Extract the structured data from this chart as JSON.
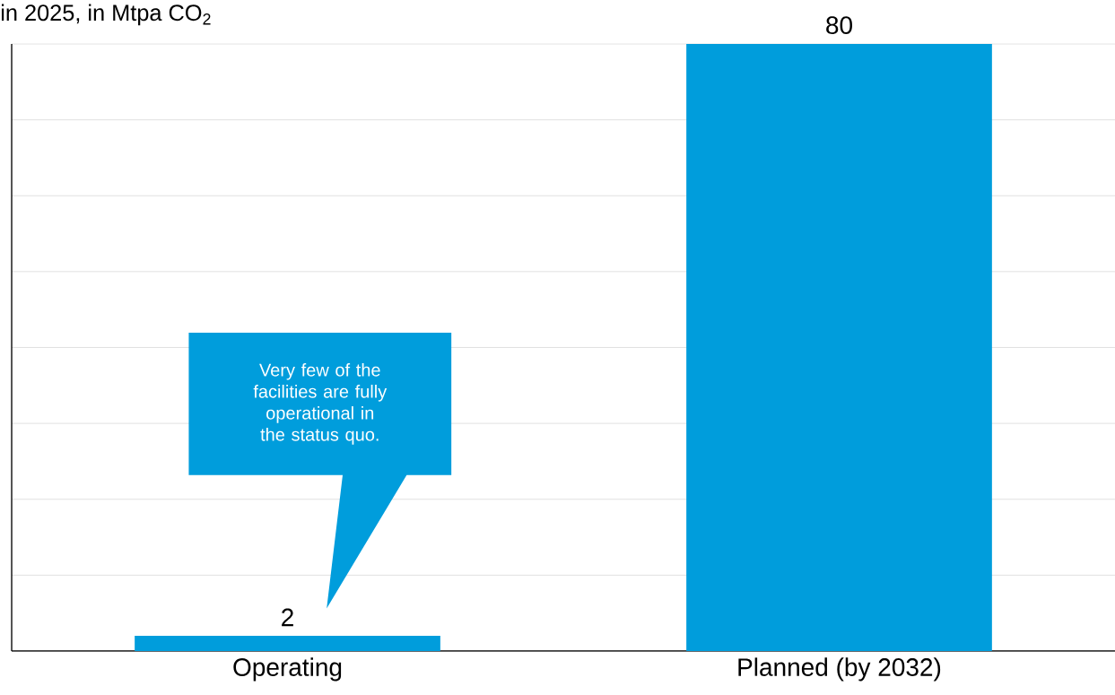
{
  "chart_data": {
    "type": "bar",
    "title": "in 2025, in Mtpa CO$_{2}$",
    "categories": [
      "Operating",
      "Planned (by 2032)"
    ],
    "values": [
      2,
      80
    ],
    "color": "#009ddc",
    "data_labels": true,
    "ylim": [
      0,
      80
    ],
    "yticks": [
      {
        "value": 0,
        "label": null
      },
      {
        "value": 10,
        "label": null
      },
      {
        "value": 20,
        "label": null
      },
      {
        "value": 30,
        "label": null
      },
      {
        "value": 40,
        "label": null
      },
      {
        "value": 50,
        "label": null
      },
      {
        "value": 60,
        "label": null
      },
      {
        "value": 70,
        "label": null
      },
      {
        "value": 80,
        "label": null
      }
    ],
    "tick_labels": "x",
    "grid": "y",
    "annotations": [
      "Very few of the facilities are fully operational in the status quo."
    ]
  }
}
